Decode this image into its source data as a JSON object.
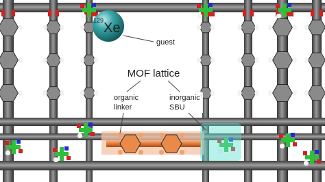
{
  "xenon": {
    "mass_number": "129",
    "symbol": "Xe",
    "label": "guest"
  },
  "title": "MOF lattice",
  "organic_linker": [
    "organic",
    "linker"
  ],
  "inorganic_sbu": [
    "inorganic",
    "SBU"
  ]
}
